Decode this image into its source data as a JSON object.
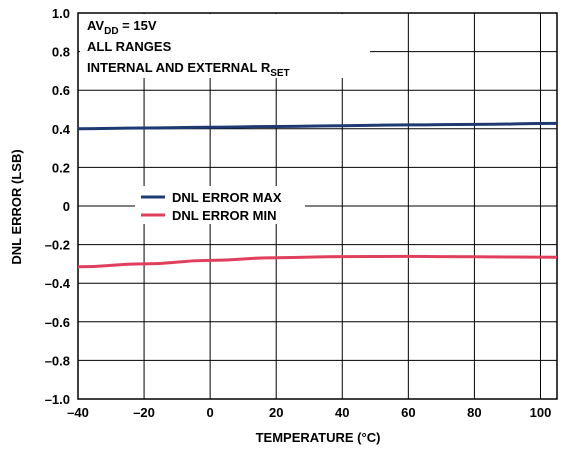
{
  "chart_data": {
    "type": "line",
    "title": "",
    "xlabel": "TEMPERATURE (°C)",
    "ylabel": "DNL ERROR (LSB)",
    "xlim": [
      -40,
      105
    ],
    "ylim": [
      -1.0,
      1.0
    ],
    "x_ticks": [
      -40,
      -20,
      0,
      20,
      40,
      60,
      80,
      100
    ],
    "x_tick_labels": [
      "–40",
      "–20",
      "0",
      "20",
      "40",
      "60",
      "80",
      "100"
    ],
    "y_ticks": [
      1.0,
      0.8,
      0.6,
      0.4,
      0.2,
      0,
      -0.2,
      -0.4,
      -0.6,
      -0.8,
      -1.0
    ],
    "y_tick_labels": [
      "1.0",
      "0.8",
      "0.6",
      "0.4",
      "0.2",
      "0",
      "–0.2",
      "–0.4",
      "–0.6",
      "–0.8",
      "–1.0"
    ],
    "grid": true,
    "legend_position": "center-left",
    "annotations": {
      "line1_main": "AV",
      "line1_sub": "DD",
      "line1_rest": " = 15V",
      "line2": "ALL RANGES",
      "line3_main": "INTERNAL AND EXTERNAL R",
      "line3_sub": "SET"
    },
    "series": [
      {
        "name": "DNL ERROR MAX",
        "color": "#1f3a73",
        "x": [
          -40,
          -20,
          0,
          20,
          40,
          60,
          80,
          105
        ],
        "y": [
          0.4,
          0.404,
          0.408,
          0.412,
          0.416,
          0.42,
          0.423,
          0.428
        ]
      },
      {
        "name": "DNL ERROR MIN",
        "color": "#e0405e",
        "x": [
          -40,
          -20,
          0,
          20,
          40,
          60,
          80,
          105
        ],
        "y": [
          -0.315,
          -0.3,
          -0.282,
          -0.268,
          -0.262,
          -0.261,
          -0.263,
          -0.266
        ]
      }
    ]
  }
}
